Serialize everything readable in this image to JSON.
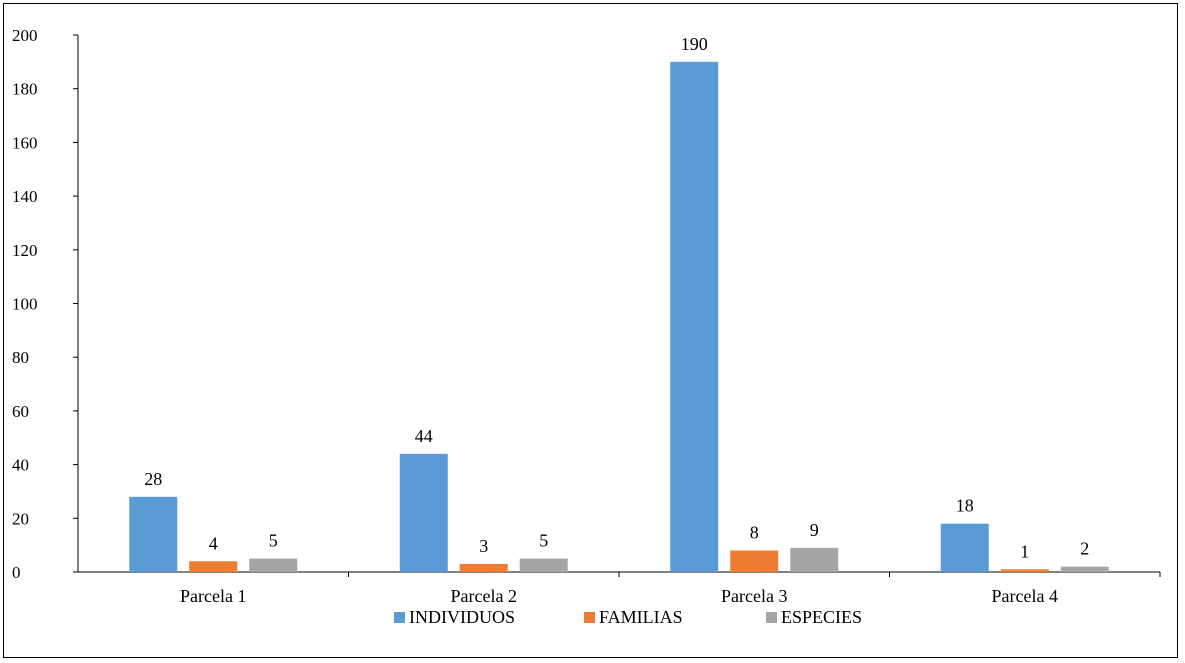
{
  "chart_data": {
    "type": "bar",
    "title": "",
    "xlabel": "",
    "ylabel": "",
    "categories": [
      "Parcela 1",
      "Parcela 2",
      "Parcela 3",
      "Parcela 4"
    ],
    "series": [
      {
        "name": "INDIVIDUOS",
        "values": [
          28,
          44,
          190,
          18
        ],
        "color": "#5b9bd5"
      },
      {
        "name": "FAMILIAS",
        "values": [
          4,
          3,
          8,
          1
        ],
        "color": "#ed7d31"
      },
      {
        "name": "ESPECIES",
        "values": [
          5,
          5,
          9,
          2
        ],
        "color": "#a5a5a5"
      }
    ],
    "ylim": [
      0,
      200
    ],
    "yticks": [
      0,
      20,
      40,
      60,
      80,
      100,
      120,
      140,
      160,
      180,
      200
    ],
    "grid": false,
    "legend_position": "bottom",
    "data_labels": true
  }
}
